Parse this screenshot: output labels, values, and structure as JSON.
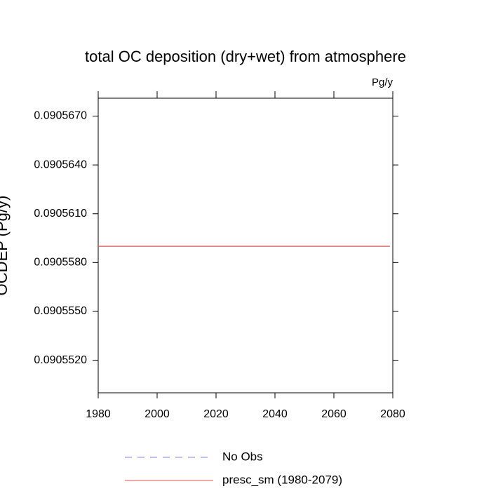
{
  "chart_data": {
    "type": "line",
    "title": "total OC deposition (dry+wet) from atmosphere",
    "units": "Pg/y",
    "y_label": "OCDEP  (Pg/y)",
    "x": [
      1980,
      2079
    ],
    "series": [
      {
        "name": "No Obs",
        "color": "#8080ff",
        "dash": true,
        "values": [
          null,
          null
        ]
      },
      {
        "name": "presc_sm (1980-2079)",
        "color": "#e05050",
        "dash": false,
        "values": [
          0.090559,
          0.090559
        ]
      }
    ],
    "xlim": [
      1980,
      2080
    ],
    "xticks": [
      1980,
      2000,
      2020,
      2040,
      2060,
      2080
    ],
    "ylim": [
      0.09055,
      0.0905681
    ],
    "yticks": [
      {
        "value": 0.090552,
        "label": "0.0905520"
      },
      {
        "value": 0.090555,
        "label": "0.0905550"
      },
      {
        "value": 0.090558,
        "label": "0.0905580"
      },
      {
        "value": 0.090561,
        "label": "0.0905610"
      },
      {
        "value": 0.090564,
        "label": "0.0905640"
      },
      {
        "value": 0.090567,
        "label": "0.0905670"
      }
    ]
  }
}
